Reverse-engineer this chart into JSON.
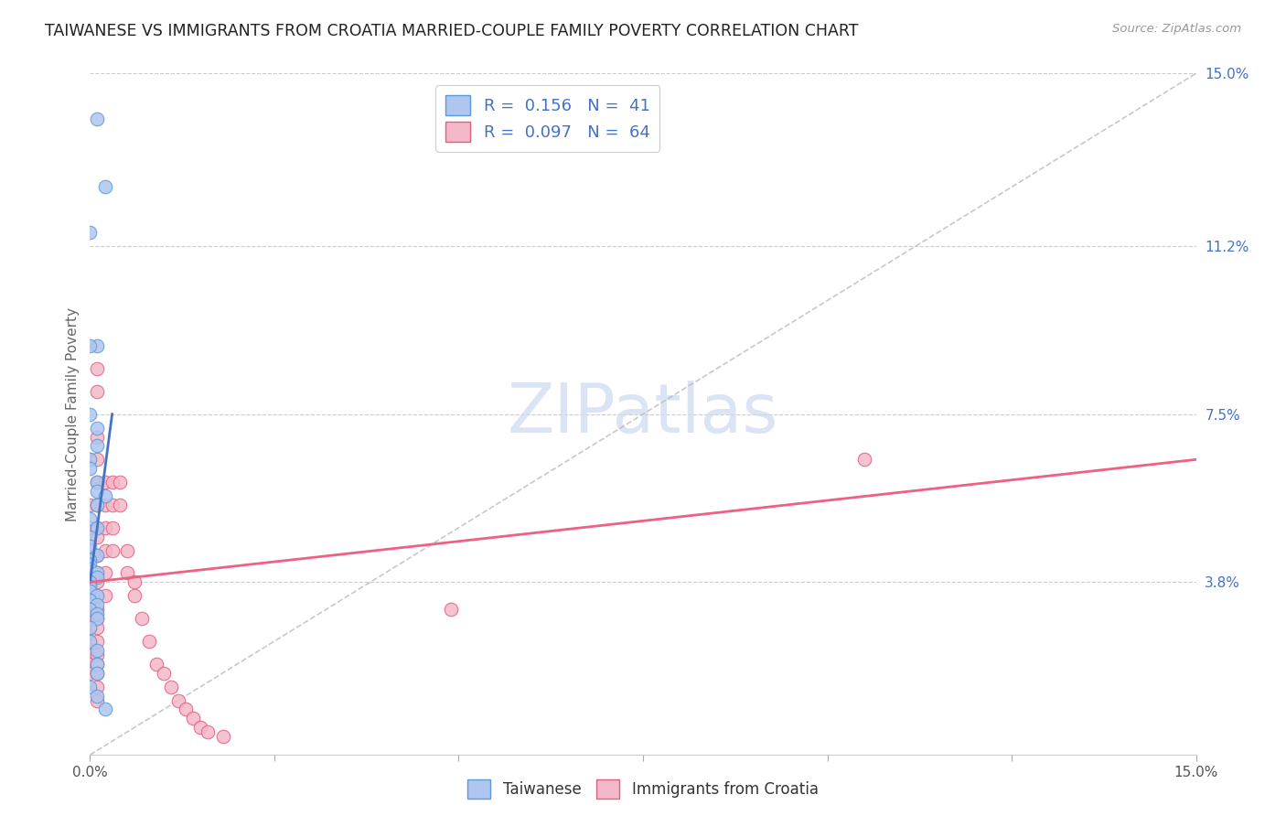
{
  "title": "TAIWANESE VS IMMIGRANTS FROM CROATIA MARRIED-COUPLE FAMILY POVERTY CORRELATION CHART",
  "source": "Source: ZipAtlas.com",
  "ylabel": "Married-Couple Family Poverty",
  "xlim": [
    0,
    0.15
  ],
  "ylim": [
    0,
    0.15
  ],
  "ytick_labels_right": [
    "15.0%",
    "11.2%",
    "7.5%",
    "3.8%"
  ],
  "ytick_vals_right": [
    0.15,
    0.112,
    0.075,
    0.038
  ],
  "background_color": "#ffffff",
  "taiwan_color": "#aec6f0",
  "taiwan_edge_color": "#5b9bd5",
  "croatia_color": "#f4b8c8",
  "croatia_edge_color": "#e06080",
  "taiwan_R": 0.156,
  "taiwan_N": 41,
  "croatia_R": 0.097,
  "croatia_N": 64,
  "taiwan_line_color": "#4472c4",
  "croatia_line_color": "#f06080",
  "legend_taiwan_label": "Taiwanese",
  "legend_croatia_label": "Immigrants from Croatia",
  "taiwan_x": [
    0.001,
    0.002,
    0.0,
    0.001,
    0.0,
    0.0,
    0.001,
    0.001,
    0.0,
    0.0,
    0.001,
    0.001,
    0.002,
    0.001,
    0.0,
    0.001,
    0.0,
    0.0,
    0.001,
    0.0,
    0.0,
    0.0,
    0.001,
    0.001,
    0.0,
    0.0,
    0.0,
    0.001,
    0.0,
    0.001,
    0.0,
    0.001,
    0.001,
    0.0,
    0.0,
    0.001,
    0.001,
    0.001,
    0.0,
    0.001,
    0.002
  ],
  "taiwan_y": [
    0.14,
    0.125,
    0.115,
    0.09,
    0.09,
    0.075,
    0.072,
    0.068,
    0.065,
    0.063,
    0.06,
    0.058,
    0.057,
    0.055,
    0.052,
    0.05,
    0.048,
    0.046,
    0.044,
    0.043,
    0.042,
    0.041,
    0.04,
    0.039,
    0.038,
    0.037,
    0.036,
    0.035,
    0.034,
    0.033,
    0.032,
    0.031,
    0.03,
    0.028,
    0.025,
    0.023,
    0.02,
    0.018,
    0.015,
    0.013,
    0.01
  ],
  "croatia_x": [
    0.0,
    0.0,
    0.0,
    0.0,
    0.0,
    0.0,
    0.0,
    0.0,
    0.0,
    0.0,
    0.0,
    0.0,
    0.0,
    0.0,
    0.001,
    0.001,
    0.001,
    0.001,
    0.001,
    0.001,
    0.001,
    0.001,
    0.001,
    0.001,
    0.001,
    0.001,
    0.001,
    0.001,
    0.001,
    0.001,
    0.001,
    0.001,
    0.001,
    0.001,
    0.001,
    0.002,
    0.002,
    0.002,
    0.002,
    0.002,
    0.002,
    0.003,
    0.003,
    0.003,
    0.003,
    0.004,
    0.004,
    0.005,
    0.005,
    0.006,
    0.006,
    0.007,
    0.008,
    0.009,
    0.01,
    0.011,
    0.012,
    0.013,
    0.014,
    0.015,
    0.016,
    0.018,
    0.049,
    0.105
  ],
  "croatia_y": [
    0.065,
    0.055,
    0.05,
    0.045,
    0.04,
    0.038,
    0.036,
    0.033,
    0.03,
    0.028,
    0.025,
    0.022,
    0.02,
    0.018,
    0.085,
    0.08,
    0.07,
    0.065,
    0.06,
    0.055,
    0.05,
    0.048,
    0.044,
    0.04,
    0.038,
    0.035,
    0.032,
    0.03,
    0.028,
    0.025,
    0.022,
    0.02,
    0.018,
    0.015,
    0.012,
    0.06,
    0.055,
    0.05,
    0.045,
    0.04,
    0.035,
    0.06,
    0.055,
    0.05,
    0.045,
    0.06,
    0.055,
    0.045,
    0.04,
    0.038,
    0.035,
    0.03,
    0.025,
    0.02,
    0.018,
    0.015,
    0.012,
    0.01,
    0.008,
    0.006,
    0.005,
    0.004,
    0.032,
    0.065
  ],
  "taiwan_line_x": [
    0.0,
    0.003
  ],
  "taiwan_line_y": [
    0.038,
    0.075
  ],
  "croatia_line_x": [
    0.0,
    0.15
  ],
  "croatia_line_y": [
    0.038,
    0.065
  ],
  "dash_line_x": [
    0.0,
    0.15
  ],
  "dash_line_y": [
    0.0,
    0.15
  ]
}
